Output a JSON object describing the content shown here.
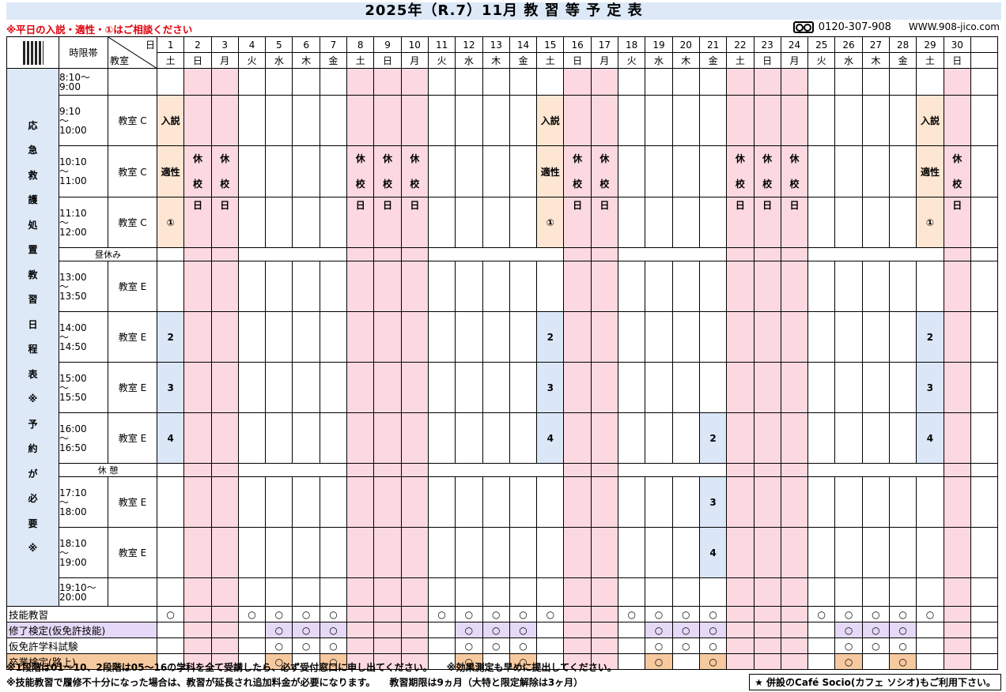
{
  "title": "2025年（R.7）11月 教 習 等 予 定 表",
  "notice": "※平日の入説・適性・①はご相談ください",
  "phone": "0120-307-908",
  "url": "WWW.908-jico.com",
  "header": {
    "jigentai": "時限帯",
    "nichi": "日",
    "kyoshitsu": "教室"
  },
  "days": [
    "1",
    "2",
    "3",
    "4",
    "5",
    "6",
    "7",
    "8",
    "9",
    "10",
    "11",
    "12",
    "13",
    "14",
    "15",
    "16",
    "17",
    "18",
    "19",
    "20",
    "21",
    "22",
    "23",
    "24",
    "25",
    "26",
    "27",
    "28",
    "29",
    "30"
  ],
  "weekdays": [
    "土",
    "日",
    "月",
    "火",
    "水",
    "木",
    "金",
    "土",
    "日",
    "月",
    "火",
    "水",
    "木",
    "金",
    "土",
    "日",
    "月",
    "火",
    "水",
    "木",
    "金",
    "土",
    "日",
    "月",
    "火",
    "水",
    "木",
    "金",
    "土",
    "日"
  ],
  "side_label": [
    "応",
    "急",
    "救",
    "護",
    "処",
    "置",
    "教",
    "習",
    "日",
    "程",
    "表",
    "※",
    "予",
    "約",
    "が",
    "必",
    "要",
    "※"
  ],
  "slots": [
    {
      "time": "8:10〜\n9:00",
      "room": ""
    },
    {
      "time": "9:10\n〜\n10:00",
      "room": "教室 C"
    },
    {
      "time": "10:10\n〜\n11:00",
      "room": "教室 C"
    },
    {
      "time": "11:10\n〜\n12:00",
      "room": "教室 C"
    },
    {
      "time": "昼休み",
      "room": ""
    },
    {
      "time": "13:00\n〜\n13:50",
      "room": "教室 E"
    },
    {
      "time": "14:00\n〜\n14:50",
      "room": "教室 E"
    },
    {
      "time": "15:00\n〜\n15:50",
      "room": "教室 E"
    },
    {
      "time": "16:00\n〜\n16:50",
      "room": "教室 E"
    },
    {
      "time": "休 憩",
      "room": ""
    },
    {
      "time": "17:10\n〜\n18:00",
      "room": "教室 E"
    },
    {
      "time": "18:10\n〜\n19:00",
      "room": "教室 E"
    },
    {
      "time": "19:10〜\n20:00",
      "room": ""
    }
  ],
  "marks": {
    "nyusetsu": "入説",
    "tekisei": "適性",
    "maru1": "①",
    "kyuko": [
      "休",
      "校",
      "日"
    ],
    "s2": "2",
    "s3": "3",
    "s4": "4",
    "circle": "○"
  },
  "bottom_rows": [
    {
      "label": "技能教習"
    },
    {
      "label": "修了検定(仮免許技能)"
    },
    {
      "label": "仮免許学科試験"
    },
    {
      "label": "卒業検定(路上)"
    }
  ],
  "footnote1": "※1段階は01〜10、2段階は05〜16の学科を全て受講したら、必ず受付窓口に申し出てください。　　※効果測定も早めに提出してください。",
  "footnote2": "※技能教習で履修不十分になった場合は、教習が延長され追加料金が必要になります。　　教習期限は9ヵ月（大特と限定解除は3ヶ月）",
  "cafe": "★ 併設のCafé Socio(カフェ ソシオ)もご利用下さい。"
}
